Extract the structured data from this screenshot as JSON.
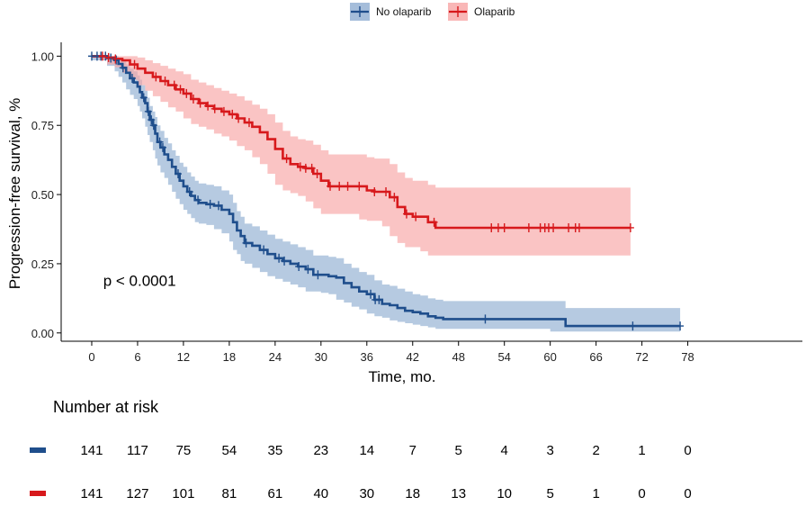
{
  "chart_data": {
    "type": "line",
    "subtype": "kaplan-meier",
    "title": "",
    "xlabel": "Time, mo.",
    "ylabel": "Progression-free survival, %",
    "xlim": [
      -4,
      93
    ],
    "ylim": [
      -0.03,
      1.05
    ],
    "x_ticks": [
      0,
      6,
      12,
      18,
      24,
      30,
      36,
      42,
      48,
      54,
      60,
      66,
      72,
      78
    ],
    "x_tick_labels": [
      "0",
      "6",
      "12",
      "18",
      "24",
      "30",
      "36",
      "42",
      "48",
      "54",
      "60",
      "66",
      "72",
      "78"
    ],
    "y_ticks": [
      0,
      0.25,
      0.5,
      0.75,
      1.0
    ],
    "y_tick_labels": [
      "0.00",
      "0.25",
      "0.50",
      "0.75",
      "1.00"
    ],
    "grid": false,
    "legend_position": "top-center",
    "annotation": {
      "text": "p < 0.0001",
      "x": 1.5,
      "y": 0.19
    },
    "series": [
      {
        "name": "No olaparib",
        "color": "#1f4e8c",
        "band_color": "#8fadd1",
        "x": [
          0,
          2,
          3,
          3.5,
          4,
          4.5,
          5,
          5.5,
          6,
          6.3,
          6.6,
          7,
          7.3,
          7.6,
          8,
          8.3,
          8.6,
          9,
          9.5,
          10,
          10.5,
          11,
          11.5,
          12,
          12.5,
          13,
          13.5,
          14,
          15,
          16,
          17,
          18,
          18.5,
          19,
          19.5,
          20,
          21,
          22,
          23,
          24,
          25,
          26,
          27,
          28,
          29,
          30,
          31,
          32,
          33,
          34,
          35,
          36,
          37,
          38,
          39,
          40,
          41,
          42,
          43,
          44,
          45,
          46,
          48,
          50,
          55,
          60,
          62,
          65,
          70,
          77
        ],
        "y": [
          1.0,
          0.993,
          0.986,
          0.972,
          0.958,
          0.94,
          0.92,
          0.905,
          0.89,
          0.87,
          0.85,
          0.83,
          0.8,
          0.77,
          0.75,
          0.72,
          0.69,
          0.67,
          0.645,
          0.625,
          0.6,
          0.575,
          0.55,
          0.53,
          0.51,
          0.495,
          0.48,
          0.47,
          0.465,
          0.46,
          0.445,
          0.43,
          0.4,
          0.37,
          0.35,
          0.325,
          0.315,
          0.3,
          0.285,
          0.27,
          0.26,
          0.25,
          0.24,
          0.23,
          0.21,
          0.21,
          0.205,
          0.2,
          0.18,
          0.165,
          0.15,
          0.14,
          0.12,
          0.105,
          0.1,
          0.09,
          0.08,
          0.075,
          0.07,
          0.06,
          0.055,
          0.05,
          0.05,
          0.05,
          0.05,
          0.05,
          0.025,
          0.025,
          0.025,
          0.025
        ],
        "ci_upper": [
          1.0,
          1.0,
          1.0,
          0.995,
          0.985,
          0.97,
          0.955,
          0.945,
          0.93,
          0.915,
          0.895,
          0.875,
          0.85,
          0.82,
          0.8,
          0.78,
          0.75,
          0.73,
          0.705,
          0.685,
          0.66,
          0.64,
          0.615,
          0.6,
          0.58,
          0.565,
          0.55,
          0.54,
          0.535,
          0.53,
          0.515,
          0.5,
          0.47,
          0.44,
          0.42,
          0.395,
          0.385,
          0.37,
          0.355,
          0.34,
          0.33,
          0.32,
          0.31,
          0.3,
          0.28,
          0.28,
          0.275,
          0.27,
          0.25,
          0.235,
          0.22,
          0.21,
          0.19,
          0.175,
          0.17,
          0.16,
          0.15,
          0.14,
          0.135,
          0.125,
          0.12,
          0.115,
          0.115,
          0.115,
          0.115,
          0.115,
          0.09,
          0.09,
          0.09,
          0.09
        ],
        "ci_lower": [
          1.0,
          0.985,
          0.965,
          0.945,
          0.925,
          0.905,
          0.88,
          0.86,
          0.845,
          0.82,
          0.8,
          0.775,
          0.745,
          0.715,
          0.69,
          0.66,
          0.63,
          0.605,
          0.58,
          0.56,
          0.535,
          0.51,
          0.485,
          0.465,
          0.445,
          0.43,
          0.415,
          0.4,
          0.395,
          0.39,
          0.375,
          0.36,
          0.33,
          0.3,
          0.285,
          0.26,
          0.25,
          0.235,
          0.22,
          0.205,
          0.195,
          0.185,
          0.175,
          0.165,
          0.15,
          0.15,
          0.145,
          0.14,
          0.12,
          0.11,
          0.095,
          0.085,
          0.07,
          0.06,
          0.055,
          0.045,
          0.04,
          0.035,
          0.03,
          0.025,
          0.02,
          0.015,
          0.015,
          0.015,
          0.015,
          0.015,
          0.005,
          0.005,
          0.005,
          0.005
        ],
        "censor_x": [
          0,
          0.7,
          1.2,
          1.8,
          2.5,
          3.2,
          4.1,
          5.3,
          6.8,
          7.4,
          7.8,
          8.1,
          8.9,
          9.3,
          11.3,
          12.8,
          13.9,
          15.5,
          16.6,
          20.2,
          22.5,
          24.5,
          25.2,
          27.1,
          28.3,
          29.6,
          36.5,
          37.1,
          37.6,
          51.5,
          70.8,
          77
        ]
      },
      {
        "name": "Olaparib",
        "color": "#d7191c",
        "band_color": "#f7a5a5",
        "x": [
          0,
          1,
          2,
          3,
          4,
          5,
          6,
          7,
          8,
          9,
          10,
          11,
          12,
          13,
          14,
          15,
          16,
          17,
          18,
          19,
          20,
          21,
          22,
          23,
          24,
          25,
          26,
          27,
          28,
          29,
          30,
          31,
          32,
          33,
          34,
          35,
          36,
          37,
          38,
          39,
          40,
          41,
          42,
          43,
          44,
          45,
          46,
          48,
          50,
          55,
          60,
          65,
          70.5
        ],
        "y": [
          1.0,
          1.0,
          0.995,
          0.99,
          0.985,
          0.97,
          0.955,
          0.94,
          0.925,
          0.91,
          0.895,
          0.88,
          0.865,
          0.845,
          0.83,
          0.82,
          0.81,
          0.8,
          0.79,
          0.775,
          0.76,
          0.745,
          0.725,
          0.7,
          0.665,
          0.63,
          0.61,
          0.6,
          0.595,
          0.575,
          0.55,
          0.53,
          0.53,
          0.53,
          0.53,
          0.53,
          0.515,
          0.51,
          0.51,
          0.49,
          0.455,
          0.43,
          0.42,
          0.42,
          0.4,
          0.38,
          0.38,
          0.38,
          0.38,
          0.38,
          0.38,
          0.38,
          0.38
        ],
        "ci_upper": [
          1.0,
          1.0,
          1.0,
          1.0,
          1.0,
          1.0,
          0.995,
          0.985,
          0.975,
          0.965,
          0.955,
          0.945,
          0.935,
          0.915,
          0.905,
          0.895,
          0.885,
          0.875,
          0.865,
          0.855,
          0.84,
          0.825,
          0.81,
          0.79,
          0.76,
          0.73,
          0.71,
          0.7,
          0.695,
          0.68,
          0.66,
          0.645,
          0.645,
          0.645,
          0.645,
          0.645,
          0.635,
          0.63,
          0.63,
          0.61,
          0.58,
          0.56,
          0.55,
          0.55,
          0.535,
          0.525,
          0.525,
          0.525,
          0.525,
          0.525,
          0.525,
          0.525,
          0.525
        ],
        "ci_lower": [
          1.0,
          1.0,
          0.985,
          0.97,
          0.96,
          0.94,
          0.915,
          0.895,
          0.875,
          0.855,
          0.835,
          0.815,
          0.8,
          0.775,
          0.755,
          0.745,
          0.735,
          0.72,
          0.71,
          0.695,
          0.675,
          0.66,
          0.635,
          0.61,
          0.575,
          0.535,
          0.515,
          0.505,
          0.495,
          0.475,
          0.45,
          0.43,
          0.43,
          0.43,
          0.43,
          0.43,
          0.41,
          0.405,
          0.405,
          0.385,
          0.35,
          0.325,
          0.31,
          0.31,
          0.295,
          0.28,
          0.28,
          0.28,
          0.28,
          0.28,
          0.28,
          0.28,
          0.28
        ],
        "censor_x": [
          1.4,
          2.2,
          3.1,
          5.6,
          8.4,
          9.6,
          10.8,
          11.6,
          12.4,
          13.3,
          14.2,
          15.2,
          16.1,
          17.3,
          18.4,
          19.2,
          20.6,
          25.5,
          27.3,
          28.0,
          28.8,
          29.5,
          31.2,
          32.4,
          33.5,
          35.0,
          37.0,
          38.5,
          39.6,
          41.2,
          42.4,
          44.8,
          52.3,
          53.2,
          54.0,
          57.2,
          58.7,
          59.3,
          59.8,
          60.4,
          62.4,
          63.3,
          63.8,
          70.5
        ]
      }
    ]
  },
  "legend": {
    "items": [
      {
        "label": "No olaparib",
        "color": "#1f4e8c",
        "band_color": "#8fadd1"
      },
      {
        "label": "Olaparib",
        "color": "#d7191c",
        "band_color": "#f7a5a5"
      }
    ]
  },
  "risk_table": {
    "title": "Number at risk",
    "times": [
      0,
      6,
      12,
      18,
      24,
      30,
      36,
      42,
      48,
      54,
      60,
      66,
      72,
      78
    ],
    "rows": [
      {
        "color": "#1f4e8c",
        "values": [
          "141",
          "117",
          "75",
          "54",
          "35",
          "23",
          "14",
          "7",
          "5",
          "4",
          "3",
          "2",
          "1",
          "0"
        ]
      },
      {
        "color": "#d7191c",
        "values": [
          "141",
          "127",
          "101",
          "81",
          "61",
          "40",
          "30",
          "18",
          "13",
          "10",
          "5",
          "1",
          "0",
          "0"
        ]
      }
    ]
  }
}
